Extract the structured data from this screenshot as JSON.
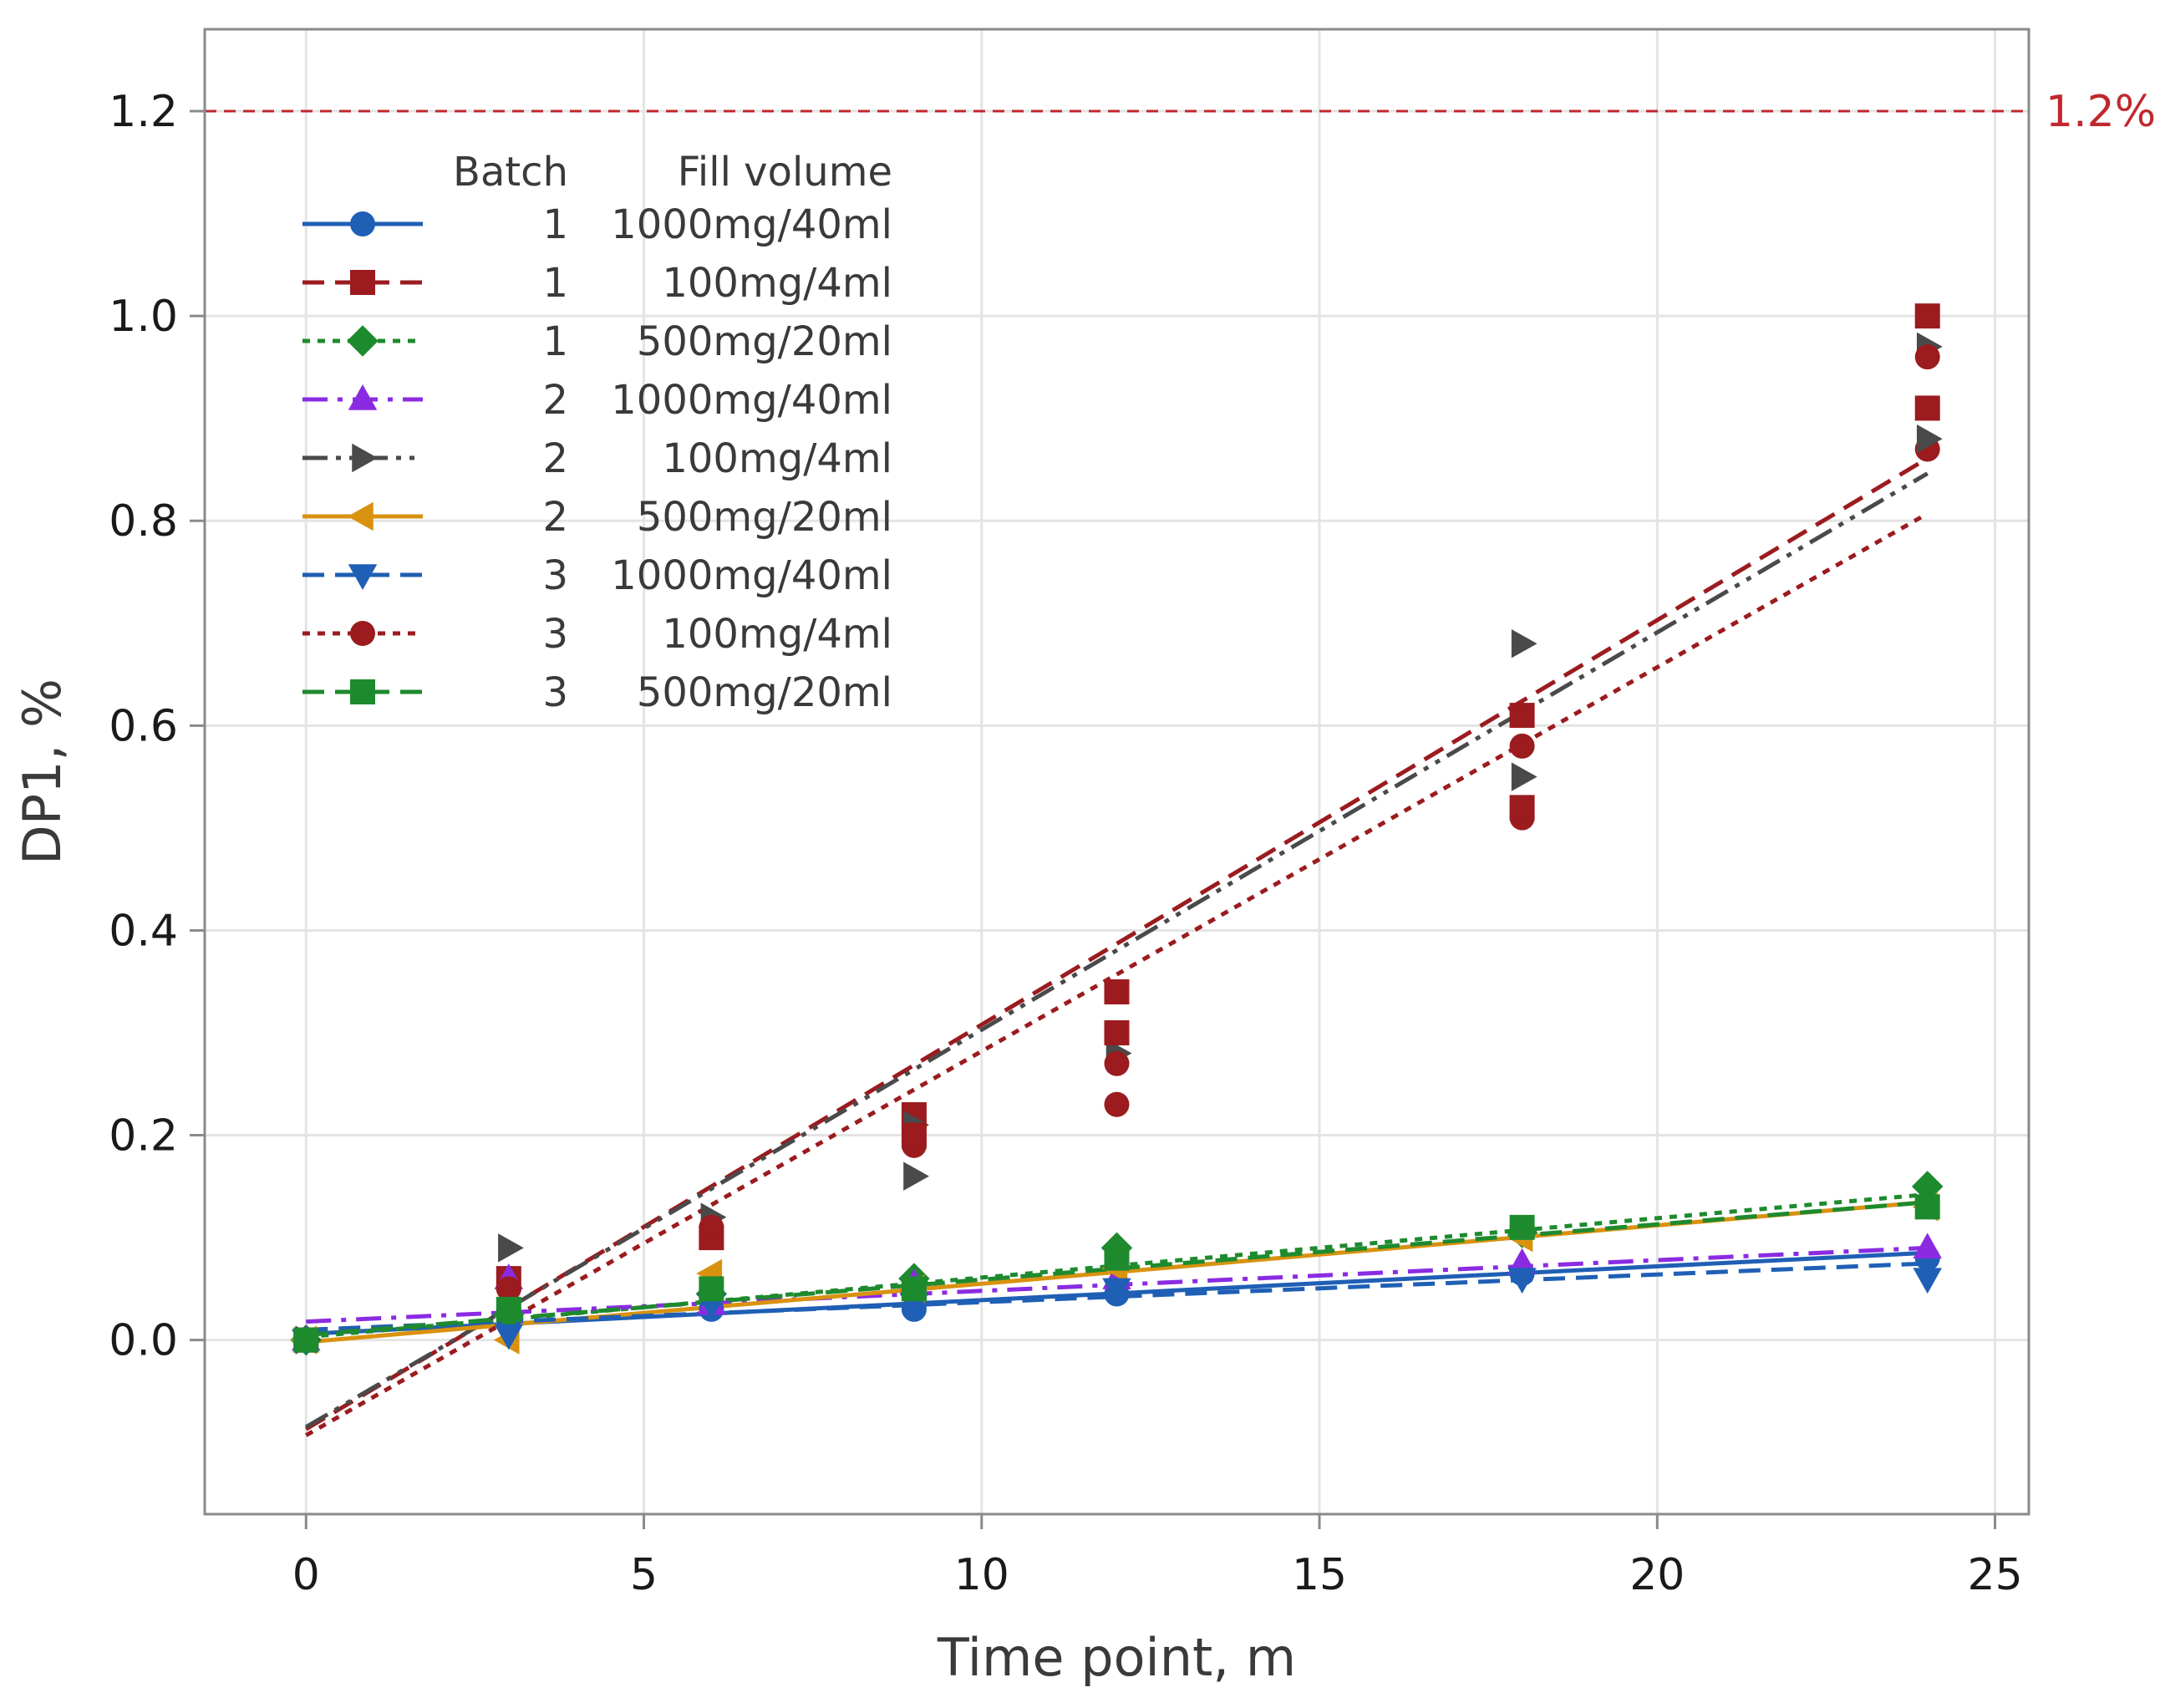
{
  "chart_data": {
    "type": "scatter",
    "xlabel": "Time point, m",
    "ylabel": "DP1, %",
    "xlim": [
      -1.5,
      25.5
    ],
    "ylim": [
      -0.17,
      1.28
    ],
    "x_ticks": [
      0,
      5,
      10,
      15,
      20,
      25
    ],
    "x_tick_labels": [
      "0",
      "5",
      "10",
      "15",
      "20",
      "25"
    ],
    "y_ticks": [
      0.0,
      0.2,
      0.4,
      0.6,
      0.8,
      1.0,
      1.2
    ],
    "y_tick_labels": [
      "0.0",
      "0.2",
      "0.4",
      "0.6",
      "0.8",
      "1.0",
      "1.2"
    ],
    "grid": true,
    "reference_line": {
      "y": 1.2,
      "label": "1.2%",
      "color": "#c0282d"
    },
    "legend": {
      "position": "top-left",
      "header_batch": "Batch",
      "header_fill": "Fill volume"
    },
    "series": [
      {
        "batch": "1",
        "fill": "1000mg/40ml",
        "color": "#1f5fb5",
        "marker": "circle",
        "dash": "solid",
        "x": [
          0,
          3,
          6,
          9,
          12,
          18,
          24
        ],
        "y": [
          0.0,
          0.02,
          0.03,
          0.03,
          0.045,
          0.065,
          0.08
        ],
        "fit": {
          "intercept": 0.006,
          "slope": 0.0033
        }
      },
      {
        "batch": "1",
        "fill": "100mg/4ml",
        "color": "#9b1b1f",
        "marker": "square",
        "dash": "dashed",
        "x": [
          0,
          3,
          6,
          9,
          12,
          18,
          24
        ],
        "y": [
          0.0,
          0.06,
          0.1,
          0.22,
          0.34,
          0.61,
          1.0
        ],
        "fit": {
          "intercept": -0.087,
          "slope": 0.0395
        }
      },
      {
        "batch": "1",
        "fill": "500mg/20ml",
        "color": "#1e8a2e",
        "marker": "diamond",
        "dash": "dotted",
        "x": [
          0,
          3,
          6,
          9,
          12,
          18,
          24
        ],
        "y": [
          0.0,
          0.025,
          0.045,
          0.06,
          0.09,
          0.105,
          0.15
        ],
        "fit": {
          "intercept": 0.003,
          "slope": 0.0058
        }
      },
      {
        "batch": "2",
        "fill": "1000mg/40ml",
        "color": "#8a2be2",
        "marker": "triangle-up",
        "dash": "dashdot",
        "x": [
          0,
          3,
          6,
          9,
          12,
          18,
          24
        ],
        "y": [
          0.0,
          0.06,
          0.035,
          0.055,
          0.06,
          0.075,
          0.09
        ],
        "fit": {
          "intercept": 0.018,
          "slope": 0.003
        }
      },
      {
        "batch": "2",
        "fill": "100mg/4ml",
        "color": "#4a4a4a",
        "marker": "triangle-right",
        "dash": "dashdotdot",
        "x": [
          0,
          3,
          6,
          9,
          12,
          18,
          24
        ],
        "y": [
          0.0,
          0.09,
          0.12,
          0.16,
          0.28,
          0.68,
          0.97
        ],
        "fit": {
          "intercept": -0.085,
          "slope": 0.0388
        }
      },
      {
        "batch": "2",
        "fill": "500mg/20ml",
        "color": "#d9920f",
        "marker": "triangle-left",
        "dash": "solid",
        "x": [
          0,
          3,
          6,
          9,
          12,
          18,
          24
        ],
        "y": [
          0.0,
          0.0,
          0.065,
          0.05,
          0.07,
          0.1,
          0.13
        ],
        "fit": {
          "intercept": -0.002,
          "slope": 0.0057
        }
      },
      {
        "batch": "3",
        "fill": "1000mg/40ml",
        "color": "#1f5fb5",
        "marker": "triangle-down",
        "dash": "dashed",
        "x": [
          0,
          3,
          6,
          9,
          12,
          18,
          24
        ],
        "y": [
          0.0,
          0.005,
          0.035,
          0.035,
          0.05,
          0.06,
          0.06
        ],
        "fit": {
          "intercept": 0.01,
          "slope": 0.0027
        }
      },
      {
        "batch": "3",
        "fill": "100mg/4ml",
        "color": "#9b1b1f",
        "marker": "circle",
        "dash": "dotted",
        "x": [
          0,
          3,
          6,
          9,
          12,
          18,
          24
        ],
        "y": [
          0.0,
          0.05,
          0.11,
          0.19,
          0.23,
          0.51,
          0.87
        ],
        "fit": {
          "intercept": -0.093,
          "slope": 0.0375
        }
      },
      {
        "batch": "3",
        "fill": "500mg/20ml",
        "color": "#1e8a2e",
        "marker": "square",
        "dash": "dashed",
        "x": [
          0,
          3,
          6,
          9,
          12,
          18,
          24
        ],
        "y": [
          0.0,
          0.03,
          0.05,
          0.05,
          0.08,
          0.11,
          0.13
        ],
        "fit": {
          "intercept": 0.005,
          "slope": 0.0054
        }
      }
    ],
    "extra_points": [
      {
        "series": 1,
        "x": 12,
        "y": 0.3
      },
      {
        "series": 1,
        "x": 18,
        "y": 0.52
      },
      {
        "series": 1,
        "x": 24,
        "y": 0.91
      },
      {
        "series": 7,
        "x": 12,
        "y": 0.27
      },
      {
        "series": 7,
        "x": 18,
        "y": 0.58
      },
      {
        "series": 7,
        "x": 24,
        "y": 0.96
      },
      {
        "series": 4,
        "x": 18,
        "y": 0.55
      },
      {
        "series": 4,
        "x": 24,
        "y": 0.88
      },
      {
        "series": 4,
        "x": 9,
        "y": 0.21
      },
      {
        "series": 1,
        "x": 9,
        "y": 0.2
      }
    ]
  }
}
